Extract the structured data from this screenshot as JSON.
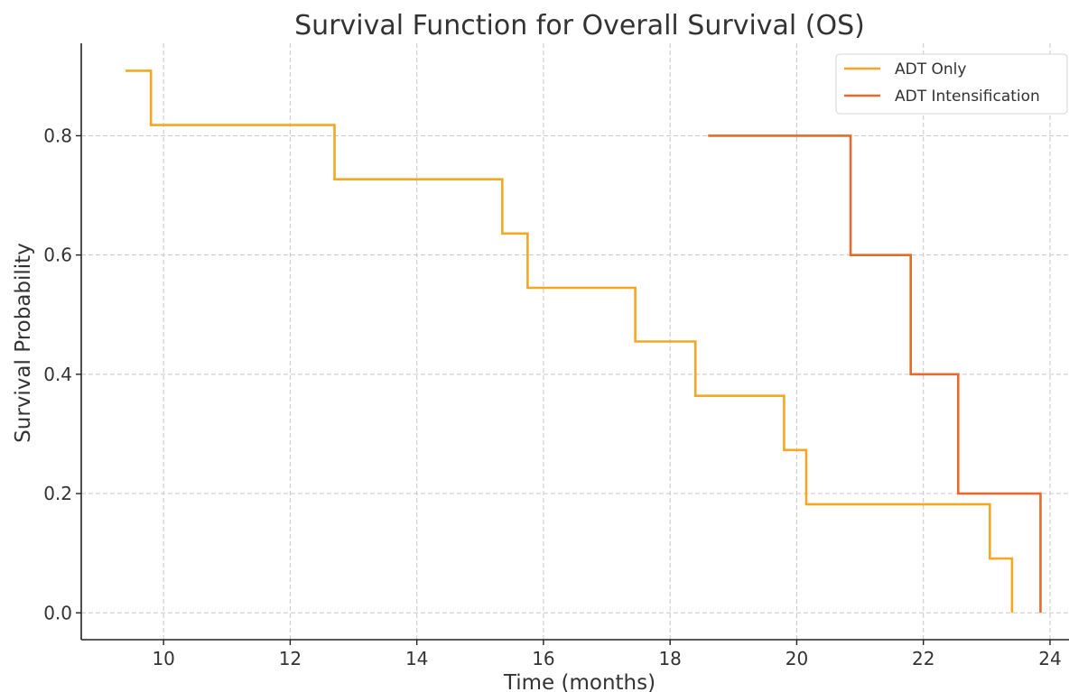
{
  "chart_data": {
    "type": "line",
    "step": true,
    "title": "Survival Function for Overall Survival (OS)",
    "xlabel": "Time (months)",
    "ylabel": "Survival Probability",
    "xlim": [
      8.7,
      24.3
    ],
    "ylim": [
      -0.045,
      0.955
    ],
    "xticks": [
      10,
      12,
      14,
      16,
      18,
      20,
      22,
      24
    ],
    "xtick_labels": [
      "10",
      "12",
      "14",
      "16",
      "18",
      "20",
      "22",
      "24"
    ],
    "yticks": [
      0.0,
      0.2,
      0.4,
      0.6,
      0.8
    ],
    "ytick_labels": [
      "0.0",
      "0.2",
      "0.4",
      "0.6",
      "0.8"
    ],
    "grid": true,
    "legend_position": "top-right",
    "series": [
      {
        "name": "ADT Only",
        "color": "#f5a623",
        "x": [
          9.4,
          9.8,
          12.7,
          15.35,
          15.75,
          17.45,
          18.4,
          19.8,
          20.15,
          23.05,
          23.4
        ],
        "y": [
          0.909,
          0.818,
          0.727,
          0.636,
          0.545,
          0.455,
          0.364,
          0.273,
          0.182,
          0.091,
          0.0
        ]
      },
      {
        "name": "ADT Intensification",
        "color": "#e8692b",
        "x": [
          18.6,
          20.85,
          21.8,
          22.55,
          23.85
        ],
        "y": [
          0.8,
          0.6,
          0.4,
          0.2,
          0.0
        ]
      }
    ]
  }
}
